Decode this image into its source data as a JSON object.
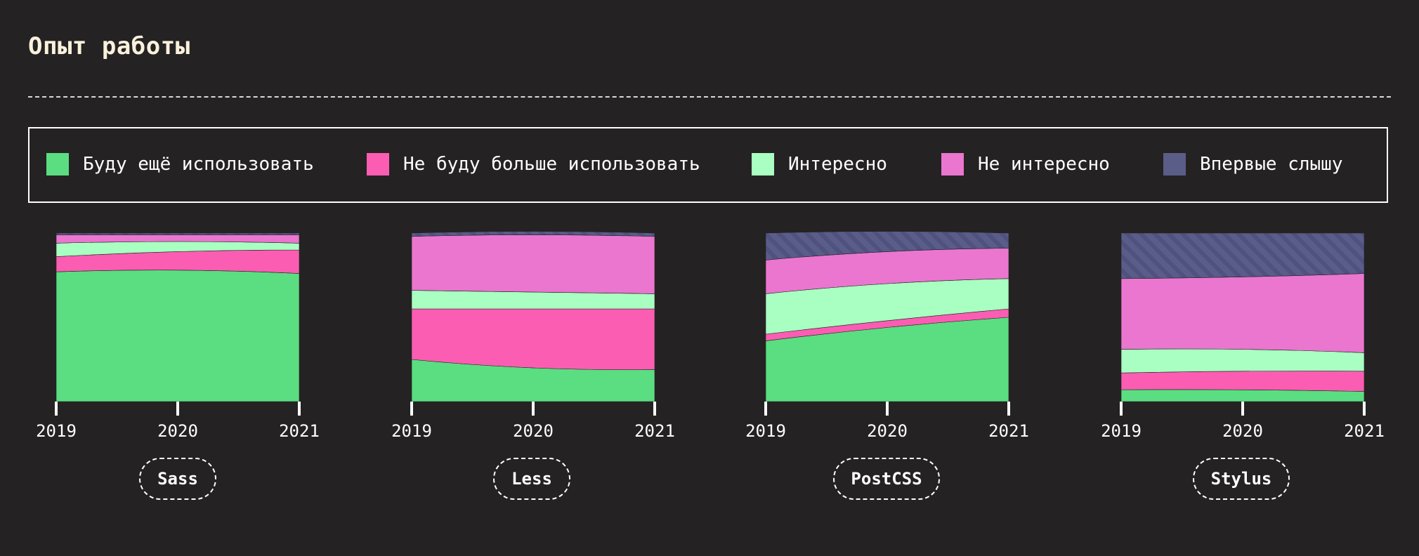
{
  "header": {
    "title": "Опыт работы"
  },
  "legend": {
    "items": [
      {
        "key": "will_use",
        "label": "Буду ещё использовать",
        "color": "#5bdd81"
      },
      {
        "key": "wont_use",
        "label": "Не буду больше использовать",
        "color": "#fb5db3"
      },
      {
        "key": "interested",
        "label": "Интересно",
        "color": "#a9ffc1"
      },
      {
        "key": "not_interested",
        "label": "Не интересно",
        "color": "#ea76cf"
      },
      {
        "key": "never_heard",
        "label": "Впервые слышу",
        "color": "#5a5d88"
      }
    ]
  },
  "chart_data": [
    {
      "type": "area",
      "stacked": true,
      "normalized_percent": true,
      "tool": "Sass",
      "x": [
        "2019",
        "2020",
        "2021"
      ],
      "series": [
        {
          "name": "Буду ещё использовать",
          "values": [
            77,
            78,
            76
          ]
        },
        {
          "name": "Не буду больше использовать",
          "values": [
            9,
            11,
            14
          ]
        },
        {
          "name": "Интересно",
          "values": [
            8,
            6,
            4
          ]
        },
        {
          "name": "Не интересно",
          "values": [
            5,
            4,
            5
          ]
        },
        {
          "name": "Впервые слышу",
          "values": [
            1,
            1,
            1
          ]
        }
      ]
    },
    {
      "type": "area",
      "stacked": true,
      "normalized_percent": true,
      "tool": "Less",
      "x": [
        "2019",
        "2020",
        "2021"
      ],
      "series": [
        {
          "name": "Буду ещё использовать",
          "values": [
            25,
            20,
            19
          ]
        },
        {
          "name": "Не буду больше использовать",
          "values": [
            30,
            35,
            36
          ]
        },
        {
          "name": "Интересно",
          "values": [
            11,
            10,
            9
          ]
        },
        {
          "name": "Не интересно",
          "values": [
            32,
            34,
            34
          ]
        },
        {
          "name": "Впервые слышу",
          "values": [
            2,
            2,
            2
          ]
        }
      ]
    },
    {
      "type": "area",
      "stacked": true,
      "normalized_percent": true,
      "tool": "PostCSS",
      "x": [
        "2019",
        "2020",
        "2021"
      ],
      "series": [
        {
          "name": "Буду ещё использовать",
          "values": [
            36,
            44,
            50
          ]
        },
        {
          "name": "Не буду больше использовать",
          "values": [
            4,
            4,
            5
          ]
        },
        {
          "name": "Интересно",
          "values": [
            24,
            22,
            18
          ]
        },
        {
          "name": "Не интересно",
          "values": [
            20,
            19,
            18
          ]
        },
        {
          "name": "Впервые слышу",
          "values": [
            16,
            12,
            9
          ]
        }
      ]
    },
    {
      "type": "area",
      "stacked": true,
      "normalized_percent": true,
      "tool": "Stylus",
      "x": [
        "2019",
        "2020",
        "2021"
      ],
      "series": [
        {
          "name": "Буду ещё использовать",
          "values": [
            7,
            7,
            6
          ]
        },
        {
          "name": "Не буду больше использовать",
          "values": [
            10,
            11,
            12
          ]
        },
        {
          "name": "Интересно",
          "values": [
            14,
            13,
            11
          ]
        },
        {
          "name": "Не интересно",
          "values": [
            42,
            43,
            47
          ]
        },
        {
          "name": "Впервые слышу",
          "values": [
            27,
            26,
            24
          ]
        }
      ]
    }
  ]
}
